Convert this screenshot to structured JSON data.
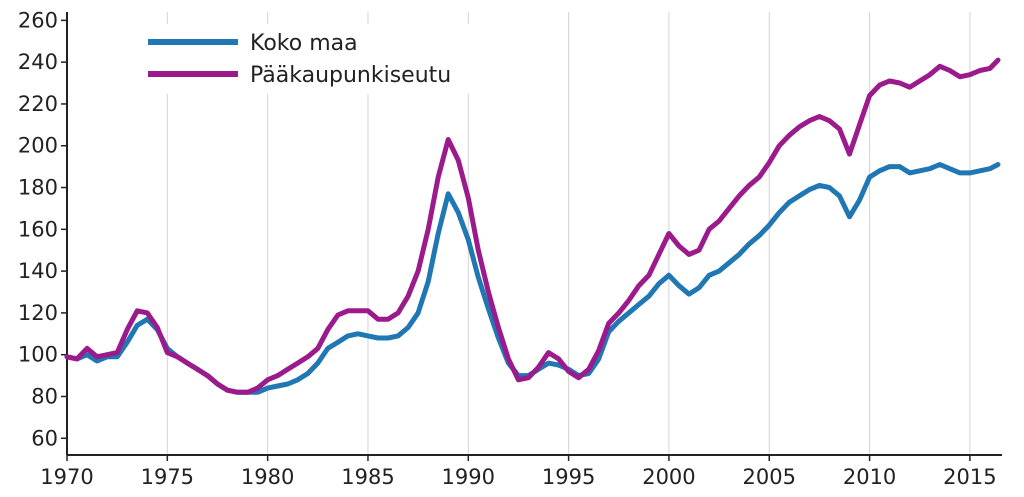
{
  "chart_data": {
    "type": "line",
    "title": "",
    "xlabel": "",
    "ylabel": "",
    "xlim": [
      1970,
      2016.6
    ],
    "ylim": [
      52,
      264
    ],
    "x_ticks": [
      "1970",
      "1975",
      "1980",
      "1985",
      "1990",
      "1995",
      "2000",
      "2005",
      "2010",
      "2015"
    ],
    "y_ticks": [
      "60",
      "80",
      "100",
      "120",
      "140",
      "160",
      "180",
      "200",
      "220",
      "240",
      "260"
    ],
    "grid": {
      "vertical": true,
      "horizontal": false
    },
    "legend_position": "top-left",
    "series": [
      {
        "name": "Koko maa",
        "color": "#1f77b4",
        "points": [
          [
            1970,
            99
          ],
          [
            1970.5,
            98
          ],
          [
            1971,
            100
          ],
          [
            1971.5,
            97
          ],
          [
            1972,
            99
          ],
          [
            1972.5,
            99
          ],
          [
            1973,
            106
          ],
          [
            1973.5,
            114
          ],
          [
            1974,
            117
          ],
          [
            1974.5,
            112
          ],
          [
            1975,
            103
          ],
          [
            1975.5,
            99
          ],
          [
            1976,
            96
          ],
          [
            1976.5,
            93
          ],
          [
            1977,
            90
          ],
          [
            1977.5,
            86
          ],
          [
            1978,
            83
          ],
          [
            1978.5,
            82
          ],
          [
            1979,
            82
          ],
          [
            1979.5,
            82
          ],
          [
            1980,
            84
          ],
          [
            1980.5,
            85
          ],
          [
            1981,
            86
          ],
          [
            1981.5,
            88
          ],
          [
            1982,
            91
          ],
          [
            1982.5,
            96
          ],
          [
            1983,
            103
          ],
          [
            1983.5,
            106
          ],
          [
            1984,
            109
          ],
          [
            1984.5,
            110
          ],
          [
            1985,
            109
          ],
          [
            1985.5,
            108
          ],
          [
            1986,
            108
          ],
          [
            1986.5,
            109
          ],
          [
            1987,
            113
          ],
          [
            1987.5,
            120
          ],
          [
            1988,
            135
          ],
          [
            1988.5,
            158
          ],
          [
            1989,
            177
          ],
          [
            1989.5,
            168
          ],
          [
            1990,
            155
          ],
          [
            1990.5,
            137
          ],
          [
            1991,
            122
          ],
          [
            1991.5,
            108
          ],
          [
            1992,
            96
          ],
          [
            1992.5,
            90
          ],
          [
            1993,
            90
          ],
          [
            1993.5,
            93
          ],
          [
            1994,
            96
          ],
          [
            1994.5,
            95
          ],
          [
            1995,
            93
          ],
          [
            1995.5,
            90
          ],
          [
            1996,
            91
          ],
          [
            1996.5,
            98
          ],
          [
            1997,
            111
          ],
          [
            1997.5,
            116
          ],
          [
            1998,
            120
          ],
          [
            1998.5,
            124
          ],
          [
            1999,
            128
          ],
          [
            1999.5,
            134
          ],
          [
            2000,
            138
          ],
          [
            2000.5,
            133
          ],
          [
            2001,
            129
          ],
          [
            2001.5,
            132
          ],
          [
            2002,
            138
          ],
          [
            2002.5,
            140
          ],
          [
            2003,
            144
          ],
          [
            2003.5,
            148
          ],
          [
            2004,
            153
          ],
          [
            2004.5,
            157
          ],
          [
            2005,
            162
          ],
          [
            2005.5,
            168
          ],
          [
            2006,
            173
          ],
          [
            2006.5,
            176
          ],
          [
            2007,
            179
          ],
          [
            2007.5,
            181
          ],
          [
            2008,
            180
          ],
          [
            2008.5,
            176
          ],
          [
            2009,
            166
          ],
          [
            2009.5,
            174
          ],
          [
            2010,
            185
          ],
          [
            2010.5,
            188
          ],
          [
            2011,
            190
          ],
          [
            2011.5,
            190
          ],
          [
            2012,
            187
          ],
          [
            2012.5,
            188
          ],
          [
            2013,
            189
          ],
          [
            2013.5,
            191
          ],
          [
            2014,
            189
          ],
          [
            2014.5,
            187
          ],
          [
            2015,
            187
          ],
          [
            2015.5,
            188
          ],
          [
            2016,
            189
          ],
          [
            2016.4,
            191
          ]
        ]
      },
      {
        "name": "Pääkaupunkiseutu",
        "color": "#9b1a8c",
        "points": [
          [
            1970,
            99
          ],
          [
            1970.5,
            98
          ],
          [
            1971,
            103
          ],
          [
            1971.5,
            99
          ],
          [
            1972,
            100
          ],
          [
            1972.5,
            101
          ],
          [
            1973,
            112
          ],
          [
            1973.5,
            121
          ],
          [
            1974,
            120
          ],
          [
            1974.5,
            113
          ],
          [
            1975,
            101
          ],
          [
            1975.5,
            99
          ],
          [
            1976,
            96
          ],
          [
            1976.5,
            93
          ],
          [
            1977,
            90
          ],
          [
            1977.5,
            86
          ],
          [
            1978,
            83
          ],
          [
            1978.5,
            82
          ],
          [
            1979,
            82
          ],
          [
            1979.5,
            84
          ],
          [
            1980,
            88
          ],
          [
            1980.5,
            90
          ],
          [
            1981,
            93
          ],
          [
            1981.5,
            96
          ],
          [
            1982,
            99
          ],
          [
            1982.5,
            103
          ],
          [
            1983,
            112
          ],
          [
            1983.5,
            119
          ],
          [
            1984,
            121
          ],
          [
            1984.5,
            121
          ],
          [
            1985,
            121
          ],
          [
            1985.5,
            117
          ],
          [
            1986,
            117
          ],
          [
            1986.5,
            120
          ],
          [
            1987,
            128
          ],
          [
            1987.5,
            140
          ],
          [
            1988,
            160
          ],
          [
            1988.5,
            185
          ],
          [
            1989,
            203
          ],
          [
            1989.5,
            193
          ],
          [
            1990,
            175
          ],
          [
            1990.5,
            150
          ],
          [
            1991,
            130
          ],
          [
            1991.5,
            113
          ],
          [
            1992,
            98
          ],
          [
            1992.5,
            88
          ],
          [
            1993,
            89
          ],
          [
            1993.5,
            94
          ],
          [
            1994,
            101
          ],
          [
            1994.5,
            98
          ],
          [
            1995,
            92
          ],
          [
            1995.5,
            89
          ],
          [
            1996,
            93
          ],
          [
            1996.5,
            102
          ],
          [
            1997,
            115
          ],
          [
            1997.5,
            120
          ],
          [
            1998,
            126
          ],
          [
            1998.5,
            133
          ],
          [
            1999,
            138
          ],
          [
            1999.5,
            148
          ],
          [
            2000,
            158
          ],
          [
            2000.5,
            152
          ],
          [
            2001,
            148
          ],
          [
            2001.5,
            150
          ],
          [
            2002,
            160
          ],
          [
            2002.5,
            164
          ],
          [
            2003,
            170
          ],
          [
            2003.5,
            176
          ],
          [
            2004,
            181
          ],
          [
            2004.5,
            185
          ],
          [
            2005,
            192
          ],
          [
            2005.5,
            200
          ],
          [
            2006,
            205
          ],
          [
            2006.5,
            209
          ],
          [
            2007,
            212
          ],
          [
            2007.5,
            214
          ],
          [
            2008,
            212
          ],
          [
            2008.5,
            208
          ],
          [
            2009,
            196
          ],
          [
            2009.5,
            210
          ],
          [
            2010,
            224
          ],
          [
            2010.5,
            229
          ],
          [
            2011,
            231
          ],
          [
            2011.5,
            230
          ],
          [
            2012,
            228
          ],
          [
            2012.5,
            231
          ],
          [
            2013,
            234
          ],
          [
            2013.5,
            238
          ],
          [
            2014,
            236
          ],
          [
            2014.5,
            233
          ],
          [
            2015,
            234
          ],
          [
            2015.5,
            236
          ],
          [
            2016,
            237
          ],
          [
            2016.4,
            241
          ]
        ]
      }
    ]
  }
}
